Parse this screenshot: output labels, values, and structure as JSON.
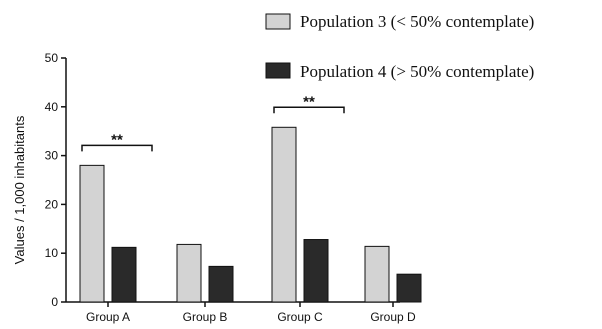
{
  "chart_data": {
    "type": "bar",
    "categories": [
      "Group A",
      "Group B",
      "Group C",
      "Group D"
    ],
    "series": [
      {
        "name": "Population 3 (< 50% contemplate)",
        "color": "#d3d3d3",
        "values": [
          28,
          11.8,
          35.8,
          11.4
        ]
      },
      {
        "name": "Population 4 (> 50% contemplate)",
        "color": "#2a2a2a",
        "values": [
          11.2,
          7.3,
          12.8,
          5.7
        ]
      }
    ],
    "ylabel": "Values / 1,000 inhabitants",
    "xlabel": "",
    "ylim": [
      0,
      50
    ],
    "yticks": [
      0,
      10,
      20,
      30,
      40,
      50
    ],
    "grid": false,
    "legend_position": "top-right",
    "annotations": [
      {
        "text": "**",
        "categories": [
          "Group A"
        ]
      },
      {
        "text": "**",
        "categories": [
          "Group C"
        ]
      }
    ]
  }
}
